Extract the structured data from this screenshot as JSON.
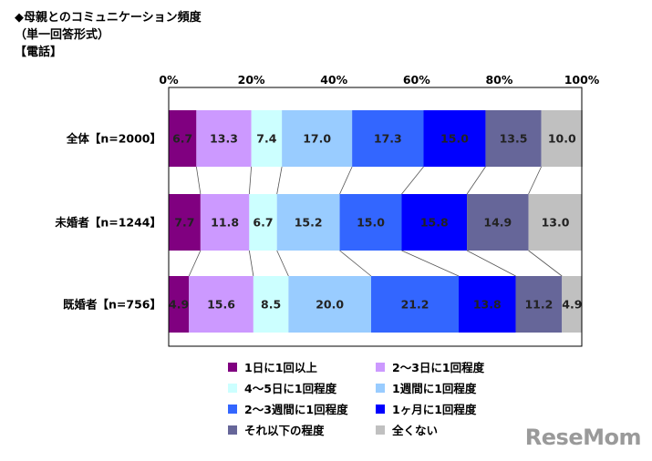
{
  "header": {
    "title": "◆母親とのコミュニケーション頻度",
    "subtitle": "（単一回答形式）",
    "section": "【電話】"
  },
  "chart_data": {
    "type": "bar",
    "orientation": "horizontal",
    "stacked": true,
    "normalized_percent": true,
    "categories": [
      "全体【n=2000】",
      "未婚者【n=1244】",
      "既婚者【n=756】"
    ],
    "xlim": [
      0,
      100
    ],
    "xticks": [
      "0%",
      "20%",
      "40%",
      "60%",
      "80%",
      "100%"
    ],
    "series": [
      {
        "name": "1日に1回以上",
        "color": "#800080",
        "values": [
          6.7,
          7.7,
          4.9
        ]
      },
      {
        "name": "2～3日に1回程度",
        "color": "#CC99FF",
        "values": [
          13.3,
          11.8,
          15.6
        ]
      },
      {
        "name": "4～5日に1回程度",
        "color": "#CCFFFF",
        "values": [
          7.4,
          6.7,
          8.5
        ]
      },
      {
        "name": "1週間に1回程度",
        "color": "#99CCFF",
        "values": [
          17.0,
          15.2,
          20.0
        ]
      },
      {
        "name": "2～3週間に1回程度",
        "color": "#3366FF",
        "values": [
          17.3,
          15.0,
          21.2
        ]
      },
      {
        "name": "1ヶ月に1回程度",
        "color": "#0000FF",
        "values": [
          15.0,
          15.8,
          13.8
        ]
      },
      {
        "name": "それ以下の程度",
        "color": "#666699",
        "values": [
          13.5,
          14.9,
          11.2
        ]
      },
      {
        "name": "全くない",
        "color": "#C0C0C0",
        "values": [
          10.0,
          13.0,
          4.9
        ]
      }
    ],
    "connector_lines": true,
    "grid": false
  },
  "watermark": "ReseMom"
}
